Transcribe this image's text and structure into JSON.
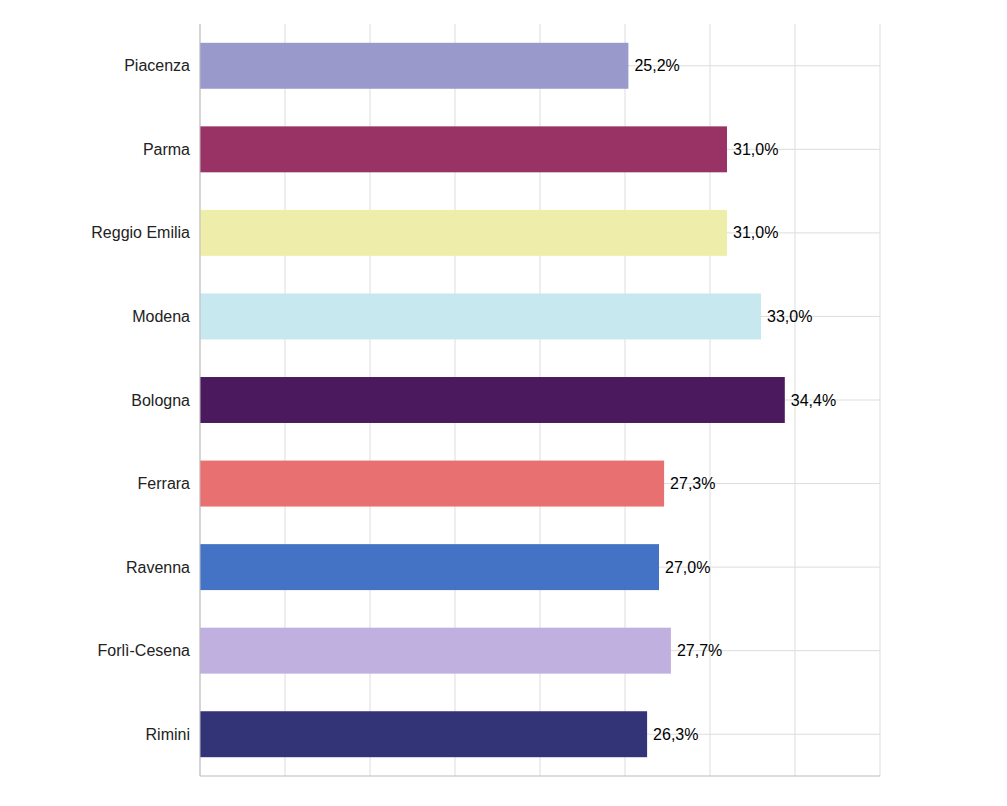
{
  "chart_data": {
    "type": "bar",
    "orientation": "horizontal",
    "categories": [
      "Piacenza",
      "Parma",
      "Reggio Emilia",
      "Modena",
      "Bologna",
      "Ferrara",
      "Ravenna",
      "Forlì-Cesena",
      "Rimini"
    ],
    "values": [
      25.2,
      31.0,
      31.0,
      33.0,
      34.4,
      27.3,
      27.0,
      27.7,
      26.3
    ],
    "value_labels": [
      "25,2%",
      "31,0%",
      "31,0%",
      "33,0%",
      "34,4%",
      "27,3%",
      "27,0%",
      "27,7%",
      "26,3%"
    ],
    "colors": [
      "#9999cc",
      "#993366",
      "#eeeeaa",
      "#c8e8f0",
      "#4b1a5e",
      "#e87070",
      "#4472c4",
      "#c0b0e0",
      "#333377"
    ],
    "xlim": [
      0,
      40
    ],
    "xticks": [
      0,
      5,
      10,
      15,
      20,
      25,
      30,
      35,
      40
    ],
    "grid": true,
    "tick_labels": "y"
  }
}
